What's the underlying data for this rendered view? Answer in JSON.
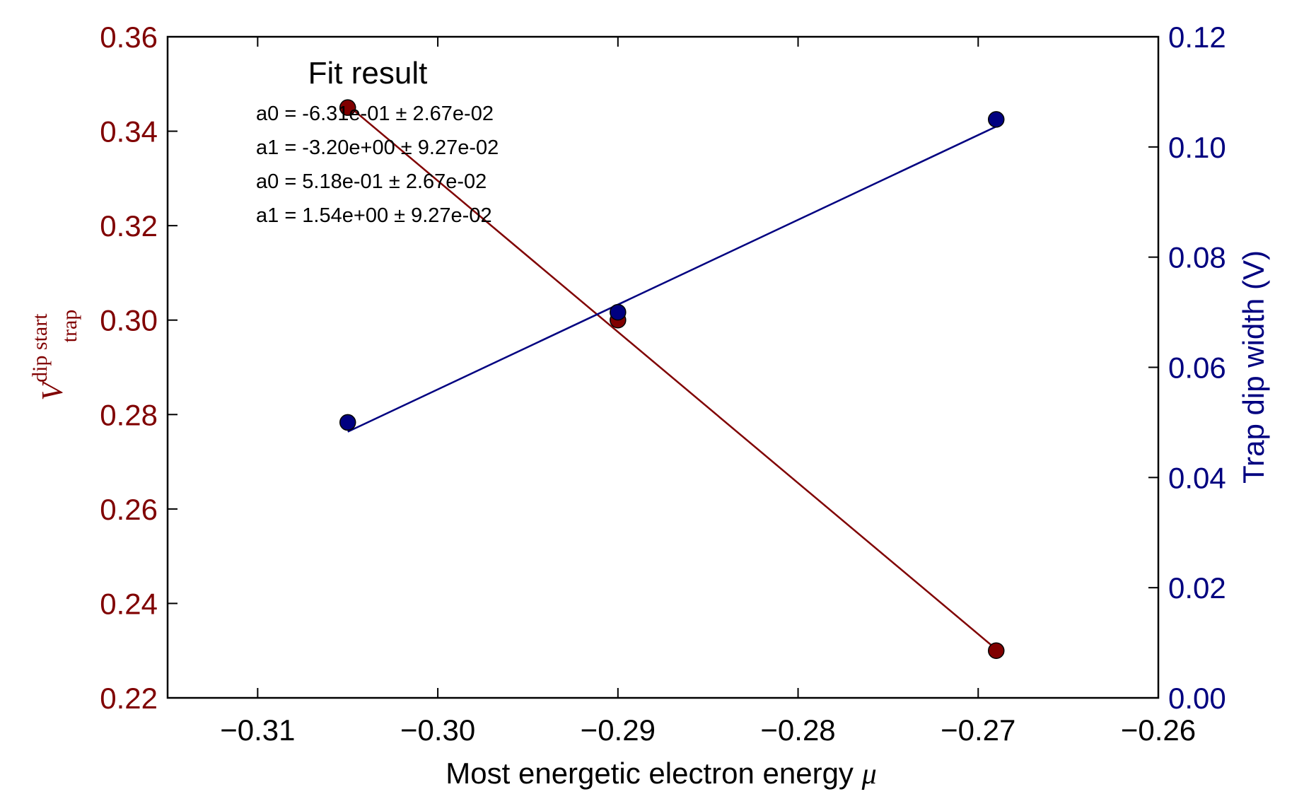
{
  "chart_data": {
    "type": "scatter",
    "x_axis": {
      "label": "Most energetic electron energy ",
      "label_symbol": "μ",
      "range": [
        -0.315,
        -0.26
      ],
      "ticks": [
        -0.31,
        -0.3,
        -0.29,
        -0.28,
        -0.27,
        -0.26
      ],
      "tick_labels": [
        "−0.31",
        "−0.30",
        "−0.29",
        "−0.28",
        "−0.27",
        "−0.26"
      ]
    },
    "y_axis_left": {
      "label_main": "V",
      "label_sup": "dip start",
      "label_sub": "trap",
      "range": [
        0.22,
        0.36
      ],
      "ticks": [
        0.22,
        0.24,
        0.26,
        0.28,
        0.3,
        0.32,
        0.34,
        0.36
      ],
      "tick_labels": [
        "0.22",
        "0.24",
        "0.26",
        "0.28",
        "0.30",
        "0.32",
        "0.34",
        "0.36"
      ],
      "color": "#800000"
    },
    "y_axis_right": {
      "label": "Trap dip width (V)",
      "range": [
        0.0,
        0.12
      ],
      "ticks": [
        0.0,
        0.02,
        0.04,
        0.06,
        0.08,
        0.1,
        0.12
      ],
      "tick_labels": [
        "0.00",
        "0.02",
        "0.04",
        "0.06",
        "0.08",
        "0.10",
        "0.12"
      ],
      "color": "#000080"
    },
    "series": [
      {
        "axis": "left",
        "color": "#800000",
        "points": [
          {
            "x": -0.305,
            "y": 0.345
          },
          {
            "x": -0.29,
            "y": 0.3
          },
          {
            "x": -0.269,
            "y": 0.23
          }
        ],
        "fit_line": [
          {
            "x": -0.305,
            "y": 0.3455
          },
          {
            "x": -0.269,
            "y": 0.2303
          }
        ]
      },
      {
        "axis": "right",
        "color": "#000080",
        "points": [
          {
            "x": -0.305,
            "y": 0.05
          },
          {
            "x": -0.29,
            "y": 0.07
          },
          {
            "x": -0.269,
            "y": 0.105
          }
        ],
        "fit_line": [
          {
            "x": -0.305,
            "y": 0.0483
          },
          {
            "x": -0.269,
            "y": 0.1037
          }
        ]
      }
    ],
    "annotation": {
      "title": "Fit result",
      "lines": [
        "a0 = -6.31e-01 ± 2.67e-02",
        "a1 = -3.20e+00 ± 9.27e-02",
        "a0 = 5.18e-01 ± 2.67e-02",
        "a1 = 1.54e+00 ± 9.27e-02"
      ]
    },
    "grid": false
  }
}
